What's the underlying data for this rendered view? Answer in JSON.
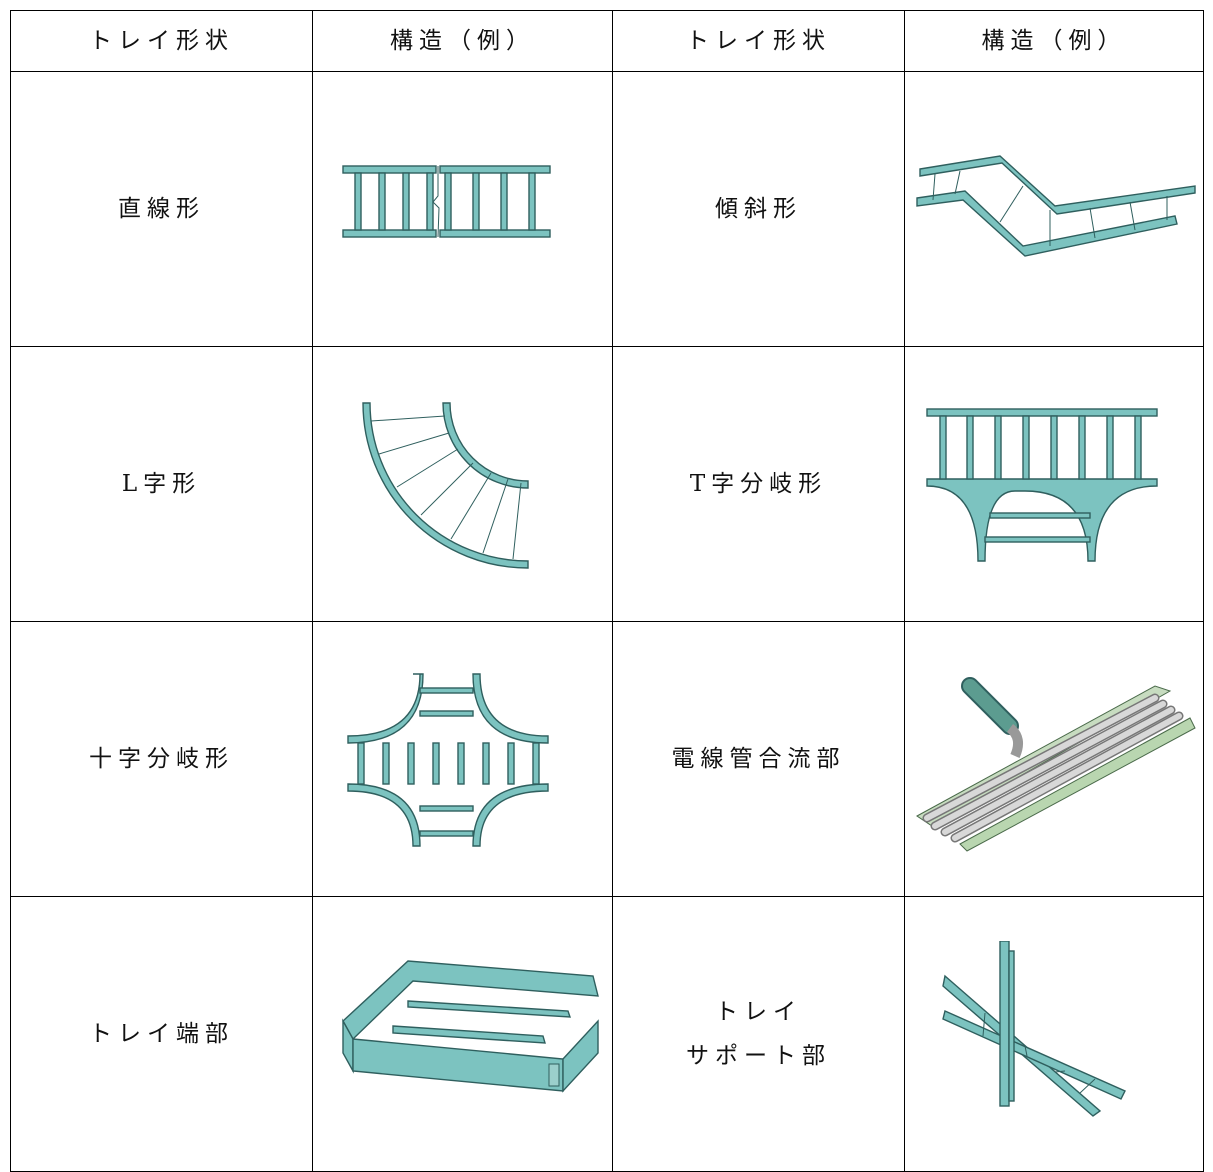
{
  "table": {
    "header": [
      "トレイ形状",
      "構造（例）",
      "トレイ形状",
      "構造（例）"
    ],
    "rows": [
      [
        "直線形",
        "傾斜形"
      ],
      [
        "L字形",
        "T字分岐形"
      ],
      [
        "十字分岐形",
        "電線管合流部"
      ],
      [
        "トレイ端部",
        "トレイ\nサポート部"
      ]
    ]
  }
}
